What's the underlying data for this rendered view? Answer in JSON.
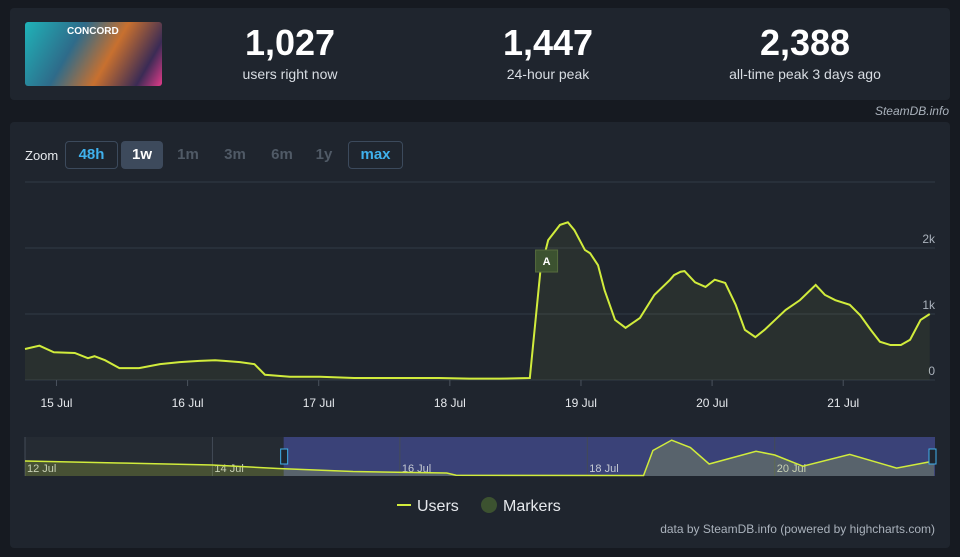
{
  "thumbnail_text": "CONCORD",
  "stats": [
    {
      "value": "1,027",
      "label": "users right now"
    },
    {
      "value": "1,447",
      "label": "24-hour peak"
    },
    {
      "value": "2,388",
      "label": "all-time peak 3 days ago"
    }
  ],
  "source": "SteamDB.info",
  "zoom": {
    "label": "Zoom",
    "buttons": [
      "48h",
      "1w",
      "1m",
      "3m",
      "6m",
      "1y",
      "max"
    ]
  },
  "chart_data": {
    "type": "line",
    "x": [
      14.76,
      14.87,
      14.98,
      15.14,
      15.24,
      15.29,
      15.37,
      15.48,
      15.63,
      15.79,
      15.94,
      16.09,
      16.21,
      16.28,
      16.4,
      16.51,
      16.59,
      16.78,
      17.01,
      17.27,
      17.62,
      17.92,
      18.15,
      18.38,
      18.61,
      18.69,
      18.75,
      18.84,
      18.9,
      18.95,
      19.03,
      19.07,
      19.13,
      19.18,
      19.26,
      19.34,
      19.45,
      19.56,
      19.68,
      19.71,
      19.76,
      19.79,
      19.87,
      19.95,
      20.02,
      20.1,
      20.18,
      20.25,
      20.33,
      20.4,
      20.48,
      20.56,
      20.67,
      20.79,
      20.86,
      20.94,
      21.05,
      21.13,
      21.21,
      21.28,
      21.36,
      21.44,
      21.51,
      21.59,
      21.66
    ],
    "series": [
      {
        "name": "Users",
        "color": "#d1ec3c",
        "values": [
          470,
          520,
          420,
          410,
          330,
          360,
          300,
          180,
          180,
          240,
          270,
          290,
          300,
          290,
          270,
          240,
          80,
          50,
          50,
          30,
          30,
          30,
          20,
          20,
          30,
          1640,
          2120,
          2350,
          2390,
          2270,
          1970,
          1920,
          1740,
          1360,
          910,
          790,
          940,
          1290,
          1520,
          1590,
          1640,
          1650,
          1480,
          1410,
          1520,
          1470,
          1140,
          760,
          650,
          760,
          910,
          1060,
          1210,
          1440,
          1290,
          1210,
          1140,
          980,
          760,
          580,
          530,
          530,
          610,
          910,
          1000
        ]
      }
    ],
    "markers": {
      "name": "Markers",
      "color": "#3c5230",
      "x": [
        18.73
      ],
      "labels": [
        "A"
      ]
    },
    "xlim": [
      14.76,
      21.7
    ],
    "xticks": [
      {
        "value": 15,
        "label": "15 Jul"
      },
      {
        "value": 16,
        "label": "16 Jul"
      },
      {
        "value": 17,
        "label": "17 Jul"
      },
      {
        "value": 18,
        "label": "18 Jul"
      },
      {
        "value": 19,
        "label": "19 Jul"
      },
      {
        "value": 20,
        "label": "20 Jul"
      },
      {
        "value": 21,
        "label": "21 Jul"
      }
    ],
    "ylim": [
      0,
      3000
    ],
    "yticks": [
      0,
      {
        "value": 1000,
        "label": "1k"
      },
      {
        "value": 2000,
        "label": "2k"
      }
    ],
    "grid": true
  },
  "navigator": {
    "x": [
      12,
      13,
      14,
      14.7,
      15.5,
      16.5,
      16.6,
      18.6,
      18.7,
      18.9,
      19.1,
      19.3,
      19.8,
      20,
      20.3,
      20.8,
      21.3,
      21.7
    ],
    "values": [
      1000,
      870,
      730,
      500,
      300,
      200,
      50,
      30,
      1700,
      2390,
      1900,
      800,
      1650,
      1400,
      650,
      1440,
      530,
      1000
    ],
    "xlim": [
      12,
      21.71
    ],
    "ylim": [
      0,
      2600
    ],
    "xticks": [
      {
        "value": 12,
        "label": "12 Jul"
      },
      {
        "value": 14,
        "label": "14 Jul"
      },
      {
        "value": 16,
        "label": "16 Jul"
      },
      {
        "value": 18,
        "label": "18 Jul"
      },
      {
        "value": 20,
        "label": "20 Jul"
      }
    ]
  },
  "credits": "data by SteamDB.info (powered by highcharts.com)"
}
